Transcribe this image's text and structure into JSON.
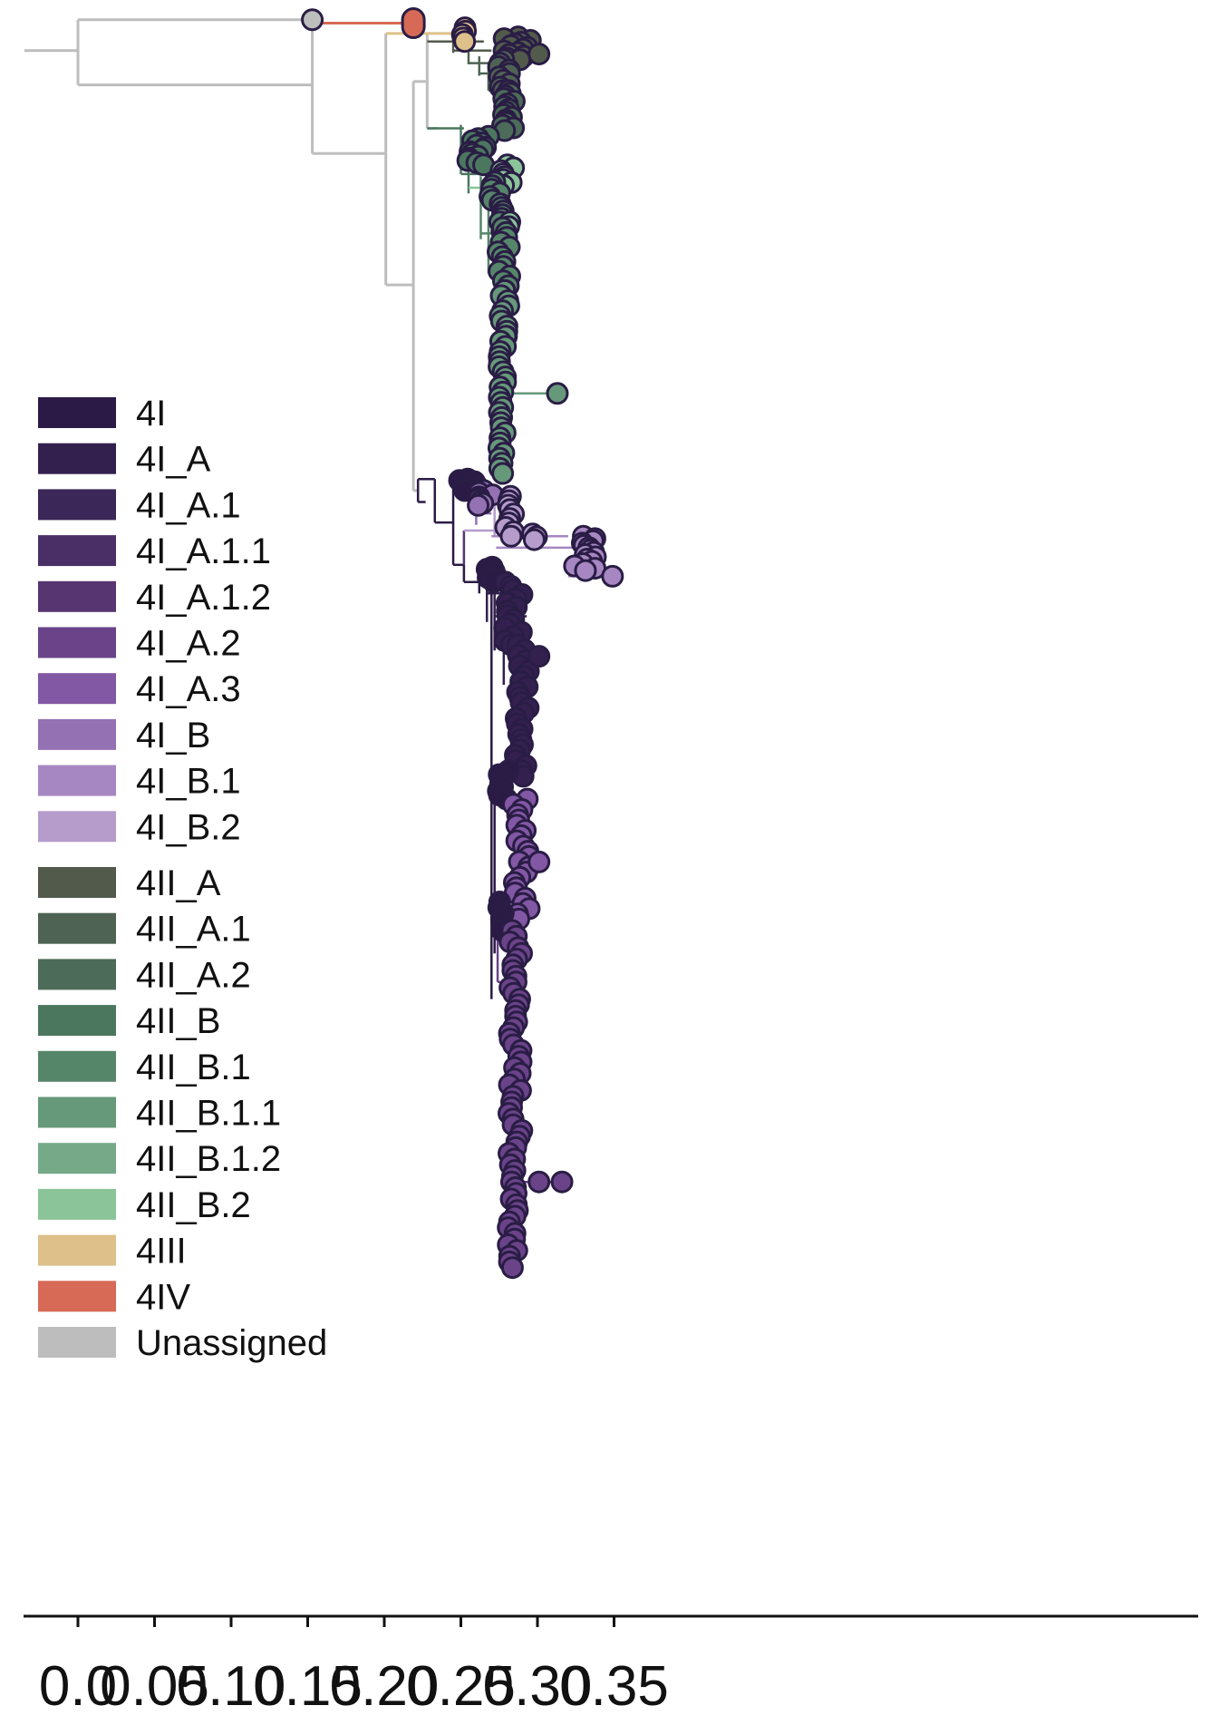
{
  "chart_data": {
    "type": "scatter",
    "subtype": "phylogenetic-tree",
    "title": "",
    "xlabel": "",
    "ylabel": "",
    "xlim": [
      -0.035,
      0.36
    ],
    "x_ticks": [
      0.0,
      0.05,
      0.1,
      0.15,
      0.2,
      0.25,
      0.3,
      0.35
    ],
    "x_tick_labels": [
      "0.0",
      "0.05",
      "0.10",
      "0.15",
      "0.20",
      "0.25",
      "0.30",
      "0.35"
    ],
    "grid": false,
    "legend": {
      "position": "left",
      "entries": [
        {
          "label": "4I",
          "color": "#2b1a45"
        },
        {
          "label": "4I_A",
          "color": "#33204f"
        },
        {
          "label": "4I_A.1",
          "color": "#3b2758"
        },
        {
          "label": "4I_A.1.1",
          "color": "#4a2f66"
        },
        {
          "label": "4I_A.1.2",
          "color": "#573570"
        },
        {
          "label": "4I_A.2",
          "color": "#6a4389"
        },
        {
          "label": "4I_A.3",
          "color": "#8257a4"
        },
        {
          "label": "4I_B",
          "color": "#9471b2"
        },
        {
          "label": "4I_B.1",
          "color": "#a687c2"
        },
        {
          "label": "4I_B.2",
          "color": "#b59ccb"
        },
        {
          "label": "4II_A",
          "color": "#525a4c"
        },
        {
          "label": "4II_A.1",
          "color": "#4f6354"
        },
        {
          "label": "4II_A.2",
          "color": "#4c6b58"
        },
        {
          "label": "4II_B",
          "color": "#4b775f"
        },
        {
          "label": "4II_B.1",
          "color": "#56866a"
        },
        {
          "label": "4II_B.1.1",
          "color": "#66987a"
        },
        {
          "label": "4II_B.1.2",
          "color": "#76a988"
        },
        {
          "label": "4II_B.2",
          "color": "#8ac498"
        },
        {
          "label": "4III",
          "color": "#ddc08a"
        },
        {
          "label": "4IV",
          "color": "#d66a56"
        },
        {
          "label": "Unassigned",
          "color": "#bdbdbd"
        }
      ]
    },
    "tips": [
      {
        "clade": "Unassigned",
        "distance": 0.153,
        "row": 0.3
      },
      {
        "clade": "4IV",
        "distance": 0.219,
        "row": 0.6
      },
      {
        "clade": "4III",
        "distance": 0.251,
        "row": 1.5
      },
      {
        "clade": "4II_A",
        "distance": 0.301,
        "row": 3.3
      },
      {
        "clade": "4II_A.1",
        "distance": 0.283,
        "row": 4.4
      },
      {
        "clade": "4II_A.2",
        "distance": 0.285,
        "row": 9.5
      },
      {
        "clade": "4II_B",
        "distance": 0.266,
        "row": 11.0
      },
      {
        "clade": "4II_B.1",
        "distance": 0.279,
        "row": 20.0
      },
      {
        "clade": "4II_B.2",
        "distance": 0.285,
        "row": 18.5
      },
      {
        "clade": "4II_B.1.1",
        "distance": 0.313,
        "row": 33.0
      },
      {
        "clade": "4I_A.1.2",
        "distance": 0.258,
        "row": 42.5
      },
      {
        "clade": "4I_B.2",
        "distance": 0.285,
        "row": 45.0
      },
      {
        "clade": "4I_B.1",
        "distance": 0.349,
        "row": 49.0
      },
      {
        "clade": "4I_A",
        "distance": 0.297,
        "row": 65.0
      },
      {
        "clade": "4I_A.3",
        "distance": 0.301,
        "row": 77.0
      },
      {
        "clade": "4I_A.2",
        "distance": 0.316,
        "row": 106.0
      }
    ]
  }
}
